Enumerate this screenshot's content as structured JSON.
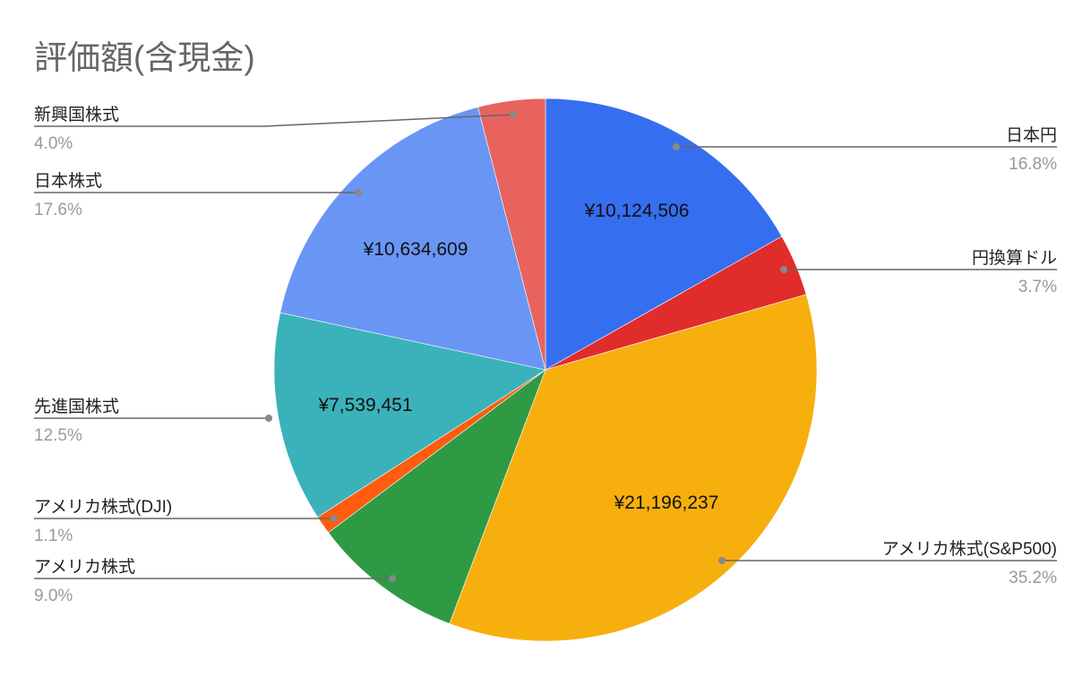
{
  "chart_data": {
    "type": "pie",
    "title": "評価額(含現金)",
    "start": "top-clockwise",
    "slices": [
      {
        "label": "日本円",
        "percent": 16.8,
        "percent_label": "16.8%",
        "value_label": "¥10,124,506",
        "color": "#366ef0"
      },
      {
        "label": "円換算ドル",
        "percent": 3.7,
        "percent_label": "3.7%",
        "value_label": "",
        "color": "#e02d2b"
      },
      {
        "label": "アメリカ株式(S&P500)",
        "percent": 35.2,
        "percent_label": "35.2%",
        "value_label": "¥21,196,237",
        "color": "#f6af0d"
      },
      {
        "label": "アメリカ株式",
        "percent": 9.0,
        "percent_label": "9.0%",
        "value_label": "",
        "color": "#2e9a44"
      },
      {
        "label": "アメリカ株式(DJI)",
        "percent": 1.1,
        "percent_label": "1.1%",
        "value_label": "",
        "color": "#ff5c0f"
      },
      {
        "label": "先進国株式",
        "percent": 12.5,
        "percent_label": "12.5%",
        "value_label": "¥7,539,451",
        "color": "#3bb2ba"
      },
      {
        "label": "日本株式",
        "percent": 17.6,
        "percent_label": "17.6%",
        "value_label": "¥10,634,609",
        "color": "#6996f5"
      },
      {
        "label": "新興国株式",
        "percent": 4.0,
        "percent_label": "4.0%",
        "value_label": "",
        "color": "#e8635d"
      }
    ]
  }
}
